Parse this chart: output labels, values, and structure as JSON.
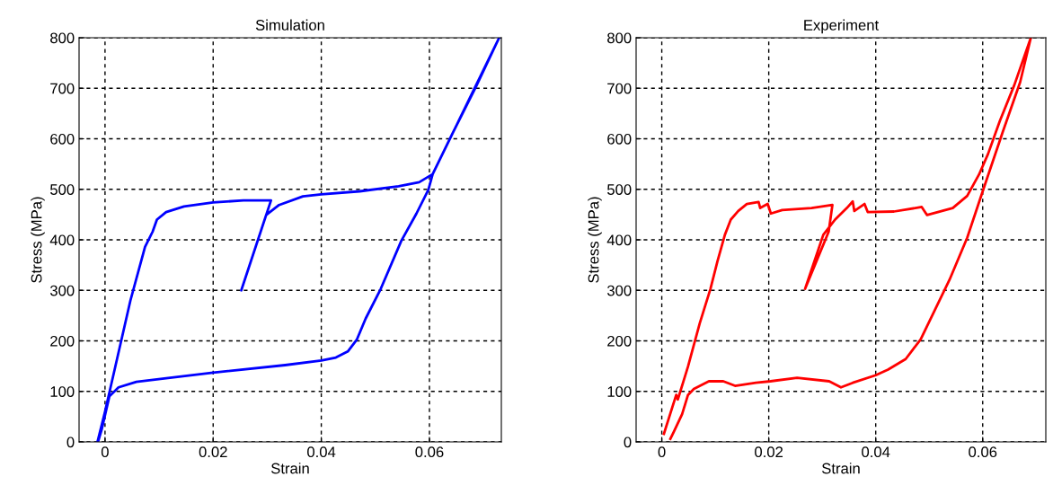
{
  "chart_data": [
    {
      "type": "line",
      "title": "Simulation",
      "xlabel": "Strain",
      "ylabel": "Stress (MPa)",
      "xlim": [
        -0.0048,
        0.0733
      ],
      "ylim": [
        0,
        800
      ],
      "xticks": [
        0,
        0.02,
        0.04,
        0.06
      ],
      "yticks": [
        0,
        100,
        200,
        300,
        400,
        500,
        600,
        700,
        800
      ],
      "grid": true,
      "marker": "none",
      "line_style": "solid",
      "series": [
        {
          "color": "#0000ff",
          "x": [
            -0.0014,
            0.0,
            0.0019,
            0.0047,
            0.0074,
            0.0088,
            0.0096,
            0.0113,
            0.0146,
            0.02,
            0.0256,
            0.0307,
            0.0252,
            0.0298,
            0.0322,
            0.0366,
            0.04,
            0.0471,
            0.0543,
            0.0581,
            0.0606,
            0.0642,
            0.0686,
            0.0729,
            0.0606,
            0.0598,
            0.0576,
            0.0548,
            0.051,
            0.0482,
            0.0466,
            0.0449,
            0.0427,
            0.04,
            0.0333,
            0.02,
            0.0113,
            0.0058,
            0.0025,
            0.0008,
            -0.0006,
            -0.0013
          ],
          "values": [
            0,
            60,
            149,
            280,
            386,
            416,
            440,
            455,
            466,
            474,
            478,
            478,
            300,
            449,
            469,
            486,
            490,
            496,
            506,
            514,
            530,
            609,
            703,
            800,
            530,
            499,
            452,
            398,
            303,
            244,
            203,
            179,
            167,
            161,
            152,
            137,
            126,
            119,
            108,
            90,
            25,
            0
          ]
        }
      ]
    },
    {
      "type": "line",
      "title": "Experiment",
      "xlabel": "Strain",
      "ylabel": "Stress (MPa)",
      "xlim": [
        -0.0048,
        0.0718
      ],
      "ylim": [
        0,
        800
      ],
      "xticks": [
        0,
        0.02,
        0.04,
        0.06
      ],
      "yticks": [
        0,
        100,
        200,
        300,
        400,
        500,
        600,
        700,
        800
      ],
      "grid": true,
      "marker": "none",
      "line_style": "solid",
      "series": [
        {
          "color": "#ff0000",
          "x": [
            0.0004,
            0.0027,
            0.003,
            0.0049,
            0.0071,
            0.0091,
            0.0104,
            0.0118,
            0.0129,
            0.0143,
            0.0159,
            0.0181,
            0.0184,
            0.0198,
            0.0204,
            0.0225,
            0.028,
            0.0319,
            0.0312,
            0.0268,
            0.0302,
            0.0324,
            0.0346,
            0.0357,
            0.036,
            0.0379,
            0.0385,
            0.0434,
            0.0486,
            0.0496,
            0.0544,
            0.0571,
            0.0593,
            0.061,
            0.0632,
            0.0659,
            0.069,
            0.067,
            0.0637,
            0.0599,
            0.0571,
            0.0538,
            0.0511,
            0.0484,
            0.0456,
            0.0423,
            0.04,
            0.0357,
            0.0335,
            0.0313,
            0.0253,
            0.0203,
            0.0176,
            0.0137,
            0.0115,
            0.0088,
            0.006,
            0.0049,
            0.0038,
            0.0022,
            0.0016
          ],
          "values": [
            16,
            93,
            84,
            149,
            235,
            303,
            357,
            410,
            440,
            457,
            471,
            475,
            463,
            471,
            452,
            459,
            463,
            469,
            416,
            303,
            410,
            440,
            463,
            476,
            457,
            471,
            455,
            456,
            465,
            449,
            463,
            487,
            529,
            570,
            635,
            706,
            800,
            712,
            612,
            493,
            404,
            321,
            262,
            203,
            164,
            143,
            132,
            117,
            108,
            120,
            127,
            120,
            117,
            111,
            120,
            120,
            105,
            93,
            55,
            19,
            6
          ]
        }
      ]
    }
  ]
}
